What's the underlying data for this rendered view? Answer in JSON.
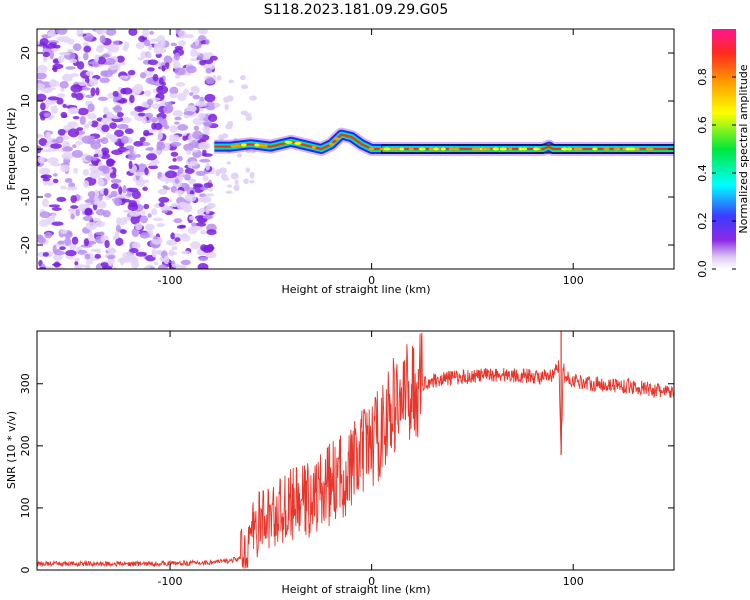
{
  "title": "S118.2023.181.09.29.G05",
  "chart_data": [
    {
      "type": "heatmap",
      "xlabel": "Height of straight line (km)",
      "ylabel": "Frequency (Hz)",
      "xlim": [
        -166,
        150
      ],
      "ylim": [
        -25,
        25
      ],
      "xticks": [
        -100,
        0,
        100
      ],
      "xtick_labels": [
        "-100",
        "0",
        "100"
      ],
      "yticks": [
        -20,
        -10,
        0,
        10,
        20
      ],
      "ytick_labels": [
        "-20",
        "-10",
        "0",
        "10",
        "20"
      ],
      "grid": false,
      "noise_region_x": [
        -166,
        -78
      ],
      "signal_ridge": {
        "x": [
          -78,
          -70,
          -60,
          -50,
          -40,
          -30,
          -25,
          -20,
          -15,
          -10,
          -5,
          0,
          5,
          50,
          85,
          88,
          90,
          150
        ],
        "y": [
          0.5,
          0.5,
          1.0,
          0.5,
          1.5,
          0.5,
          0.0,
          1.0,
          3.0,
          2.5,
          1.0,
          0.0,
          0.0,
          0.0,
          0.0,
          0.5,
          0.0,
          0.0
        ]
      },
      "colorbar": {
        "label": "Normalized spectral amplitude",
        "range": [
          0.0,
          1.0
        ],
        "ticks": [
          0.0,
          0.2,
          0.4,
          0.6,
          0.8
        ],
        "tick_labels": [
          "0.0",
          "0.2",
          "0.4",
          "0.6",
          "0.8"
        ],
        "colors": [
          "#ffffff",
          "#dcc7f2",
          "#8e2be6",
          "#3b3bff",
          "#00ffff",
          "#00e63c",
          "#ffff00",
          "#ff9a00",
          "#ff2a1e",
          "#ff1493"
        ]
      }
    },
    {
      "type": "line",
      "xlabel": "Height of straight line (km)",
      "ylabel": "SNR (10 * v/v)",
      "xlim": [
        -166,
        150
      ],
      "ylim": [
        0,
        385
      ],
      "xticks": [
        -100,
        0,
        100
      ],
      "xtick_labels": [
        "-100",
        "0",
        "100"
      ],
      "yticks": [
        0,
        100,
        200,
        300
      ],
      "ytick_labels": [
        "0",
        "100",
        "200",
        "300"
      ],
      "grid": false,
      "series": [
        {
          "name": "SNR",
          "color": "#e8352b",
          "x": [
            -166,
            -140,
            -110,
            -80,
            -70,
            -64,
            -60,
            -55,
            -50,
            -45,
            -40,
            -35,
            -30,
            -25,
            -20,
            -15,
            -10,
            -5,
            0,
            5,
            10,
            15,
            20,
            25,
            30,
            40,
            50,
            60,
            70,
            80,
            85,
            90,
            93,
            94,
            95,
            96,
            100,
            110,
            120,
            130,
            140,
            150
          ],
          "y": [
            10,
            10,
            10,
            12,
            15,
            20,
            55,
            80,
            85,
            95,
            105,
            110,
            115,
            125,
            140,
            150,
            165,
            185,
            205,
            225,
            260,
            275,
            290,
            300,
            305,
            310,
            312,
            315,
            314,
            312,
            310,
            312,
            330,
            185,
            330,
            310,
            305,
            300,
            298,
            295,
            290,
            285
          ]
        }
      ],
      "spikes": [
        {
          "x": 94,
          "y_top": 385,
          "y_bottom": 185
        }
      ]
    }
  ]
}
